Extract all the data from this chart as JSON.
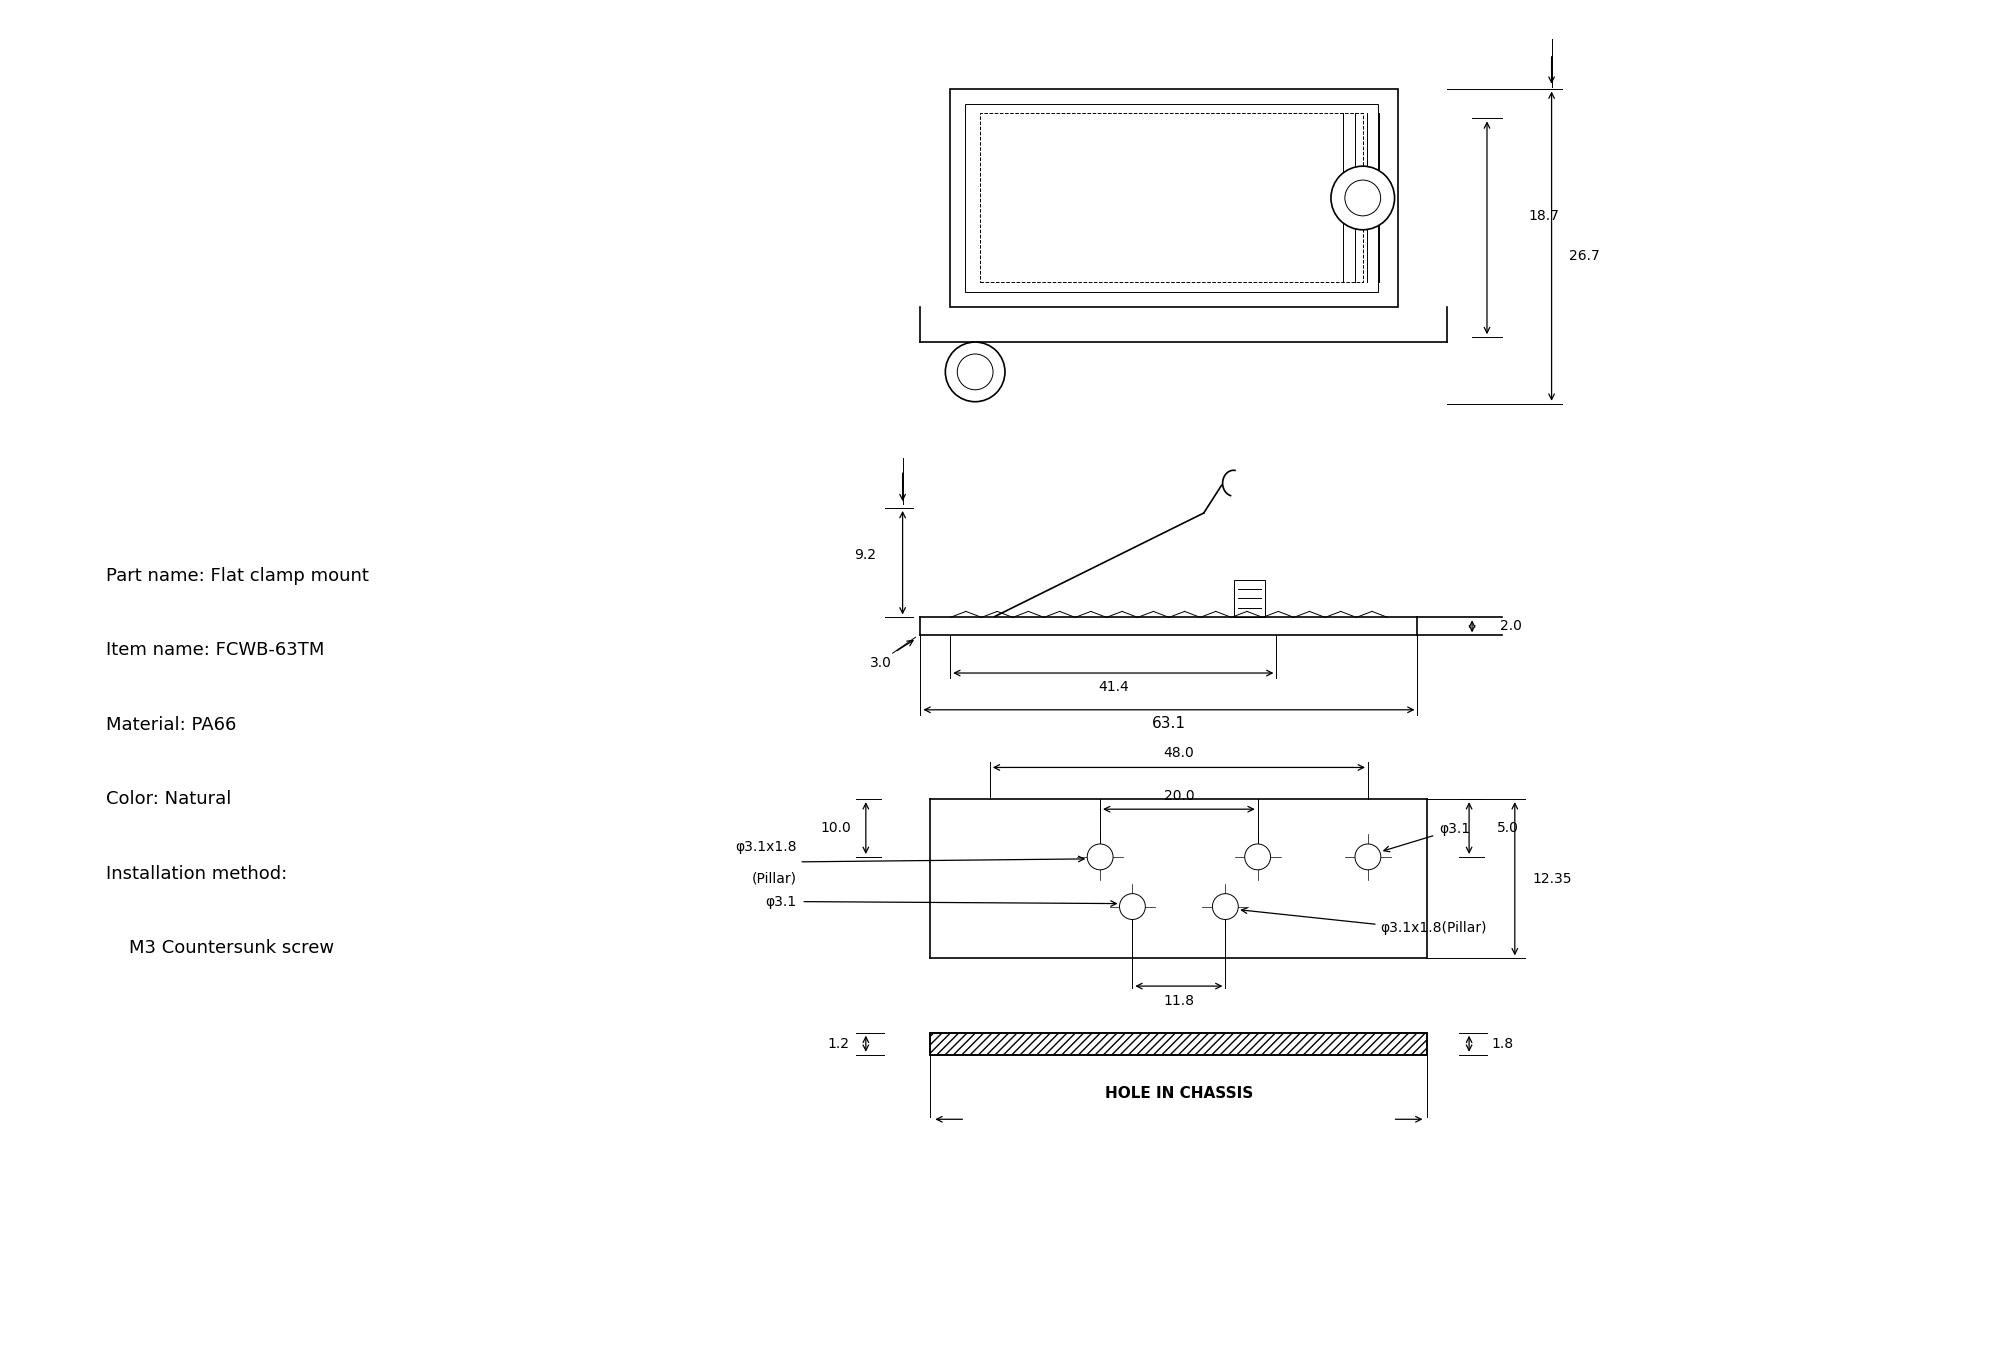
{
  "bg_color": "#ffffff",
  "line_color": "#000000",
  "text_color": "#000000",
  "part_name": "Part name: Flat clamp mount",
  "item_name": "Item name: FCWB-63TM",
  "material": "Material: PA66",
  "color_info": "Color: Natural",
  "install_method": "Installation method:",
  "install_detail": "    M3 Countersunk screw",
  "dim_18_7": "18.7",
  "dim_26_7": "26.7",
  "dim_9_2": "9.2",
  "dim_2_0": "2.0",
  "dim_3_0": "3.0",
  "dim_41_4": "41.4",
  "dim_63_1": "63.1",
  "dim_48_0": "48.0",
  "dim_20_0": "20.0",
  "dim_phi31x18": "φ3.1x1.8",
  "dim_pillar": "(Pillar)",
  "dim_phi31_top": "φ3.1",
  "dim_10_0": "10.0",
  "dim_5_0": "5.0",
  "dim_12_35": "12.35",
  "dim_phi31_bot": "φ3.1",
  "dim_11_8": "11.8",
  "dim_phi31x18_bot": "φ3.1x1.8(Pillar)",
  "dim_1_2": "1.2",
  "dim_1_8": "1.8",
  "hole_label": "HOLE IN CHASSIS",
  "fontsize_label": 11,
  "fontsize_dim": 10,
  "fontsize_text": 13,
  "lw_main": 1.2,
  "lw_thin": 0.7,
  "lw_arrow": 0.9
}
